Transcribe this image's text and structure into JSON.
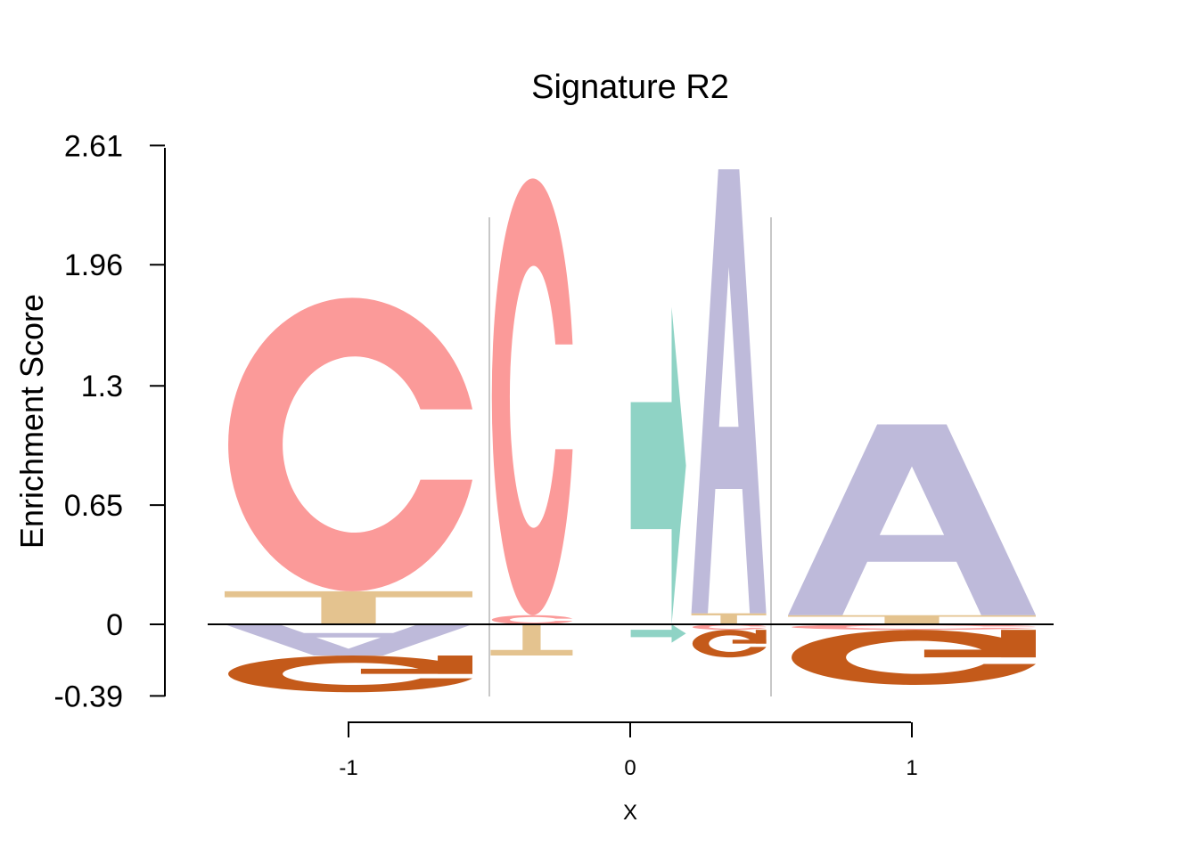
{
  "chart_data": {
    "type": "sequence-logo",
    "title": "Signature R2",
    "xlabel": "X",
    "ylabel": "Enrichment Score",
    "y_ticks": [
      "2.61",
      "1.96",
      "1.3",
      "0.65",
      "0",
      "-0.39"
    ],
    "y_tick_values": [
      2.61,
      1.96,
      1.3,
      0.65,
      0,
      -0.39
    ],
    "x_ticks": [
      "-1",
      "0",
      "1"
    ],
    "x_tick_values": [
      -1,
      0,
      1
    ],
    "ylim": [
      -0.39,
      2.61
    ],
    "colors": {
      "A": "#bebada",
      "C": "#fb9a99",
      "G": "#c45a1a",
      "T": "#e4c38f",
      "mutation": "#8fd3c5"
    },
    "positions": [
      {
        "x": -1,
        "positive": [
          {
            "base": "T",
            "score": 0.18
          },
          {
            "base": "C",
            "score": 1.6
          }
        ],
        "negative": [
          {
            "base": "A",
            "score": 0.17
          },
          {
            "base": "G",
            "score": 0.2
          }
        ]
      },
      {
        "x": -0.35,
        "positive": [
          {
            "base": "C",
            "score": 0.05
          },
          {
            "base": "C",
            "score": 2.38
          }
        ],
        "negative": [
          {
            "base": "T",
            "score": 0.17
          }
        ]
      },
      {
        "x": 0.1,
        "positive": [
          {
            "base": "mutation",
            "score": 1.73
          }
        ],
        "negative": [
          {
            "base": "mutation",
            "score": 0.1
          }
        ]
      },
      {
        "x": 0.35,
        "positive": [
          {
            "base": "T",
            "score": 0.06
          },
          {
            "base": "A",
            "score": 2.42
          }
        ],
        "negative": [
          {
            "base": "C",
            "score": 0.03
          },
          {
            "base": "G",
            "score": 0.15
          }
        ]
      },
      {
        "x": 1,
        "positive": [
          {
            "base": "T",
            "score": 0.05
          },
          {
            "base": "A",
            "score": 1.04
          }
        ],
        "negative": [
          {
            "base": "C",
            "score": 0.03
          },
          {
            "base": "G",
            "score": 0.3
          }
        ]
      }
    ],
    "grid": false,
    "legend": "none"
  }
}
